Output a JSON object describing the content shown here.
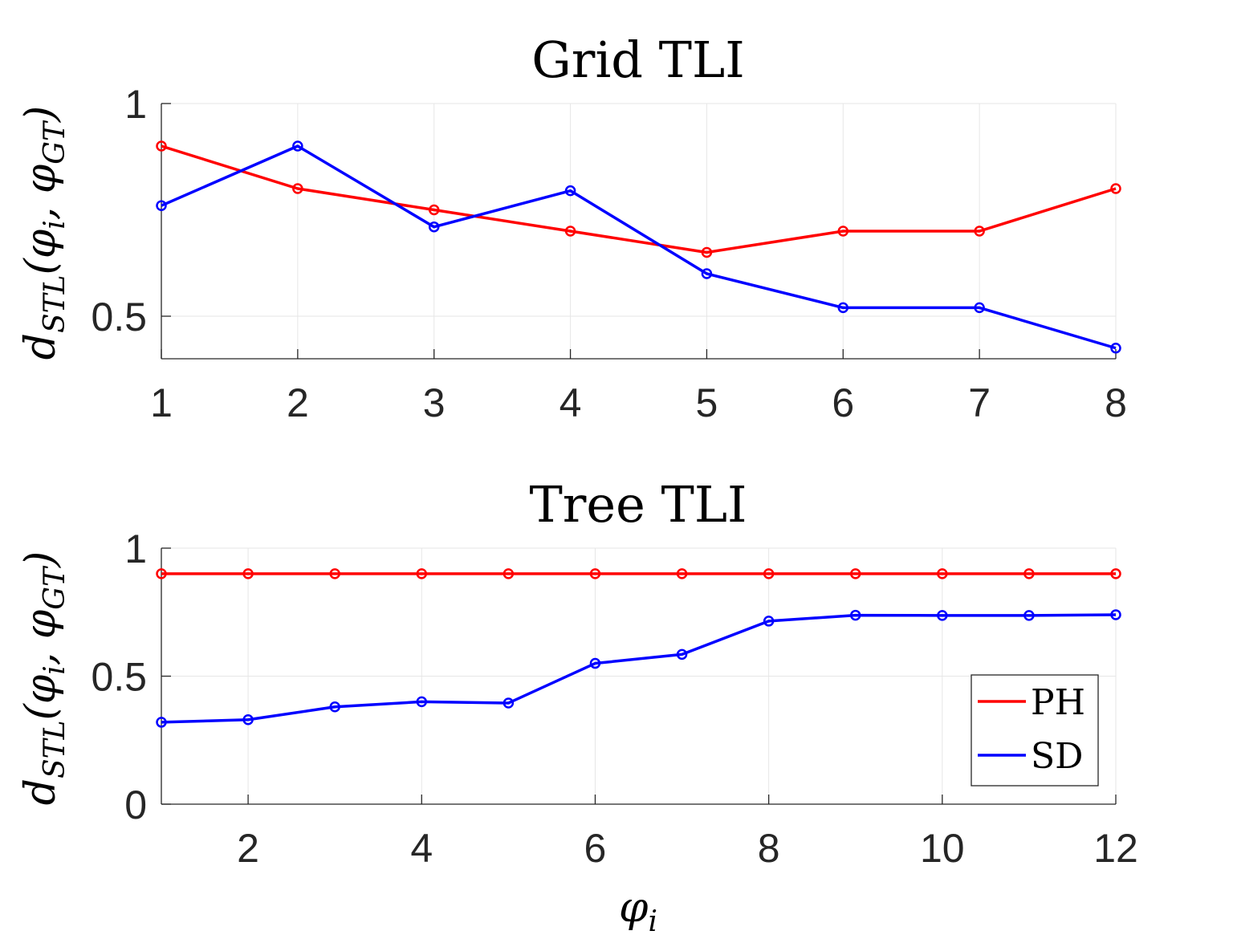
{
  "chart_data": [
    {
      "type": "line",
      "title": "Grid TLI",
      "xlabel": "",
      "ylabel": "d_STL(φi, φGT)",
      "ylabel_parts": {
        "main": "d",
        "sub": "STL",
        "args": "(φ",
        "sub1": "i",
        "mid": ", φ",
        "sub2": "GT",
        "close": ")"
      },
      "x": [
        1,
        2,
        3,
        4,
        5,
        6,
        7,
        8
      ],
      "xlim": [
        1,
        8
      ],
      "ylim": [
        0.4,
        1.0
      ],
      "xticks": [
        1,
        2,
        3,
        4,
        5,
        6,
        7,
        8
      ],
      "yticks": [
        0.5,
        1
      ],
      "ytick_labels": [
        "0.5",
        "1"
      ],
      "grid": true,
      "series": [
        {
          "name": "PH",
          "color": "#ff0000",
          "values": [
            0.9,
            0.8,
            0.75,
            0.7,
            0.65,
            0.7,
            0.7,
            0.8
          ]
        },
        {
          "name": "SD",
          "color": "#0000ff",
          "values": [
            0.76,
            0.9,
            0.71,
            0.795,
            0.6,
            0.52,
            0.52,
            0.425
          ]
        }
      ]
    },
    {
      "type": "line",
      "title": "Tree TLI",
      "xlabel": "φi",
      "xlabel_parts": {
        "main": "φ",
        "sub": "i"
      },
      "ylabel": "d_STL(φi, φGT)",
      "ylabel_parts": {
        "main": "d",
        "sub": "STL",
        "args": "(φ",
        "sub1": "i",
        "mid": ", φ",
        "sub2": "GT",
        "close": ")"
      },
      "x": [
        1,
        2,
        3,
        4,
        5,
        6,
        7,
        8,
        9,
        10,
        11,
        12
      ],
      "xlim": [
        1,
        12
      ],
      "ylim": [
        0,
        1
      ],
      "xticks": [
        2,
        4,
        6,
        8,
        10,
        12
      ],
      "yticks": [
        0,
        0.5,
        1
      ],
      "ytick_labels": [
        "0",
        "0.5",
        "1"
      ],
      "grid": true,
      "legend": {
        "position": "bottom-right",
        "entries": [
          "PH",
          "SD"
        ]
      },
      "series": [
        {
          "name": "PH",
          "color": "#ff0000",
          "values": [
            0.9,
            0.9,
            0.9,
            0.9,
            0.9,
            0.9,
            0.9,
            0.9,
            0.9,
            0.9,
            0.9,
            0.9
          ]
        },
        {
          "name": "SD",
          "color": "#0000ff",
          "values": [
            0.32,
            0.33,
            0.38,
            0.4,
            0.395,
            0.55,
            0.585,
            0.715,
            0.738,
            0.737,
            0.737,
            0.74
          ]
        }
      ]
    }
  ]
}
